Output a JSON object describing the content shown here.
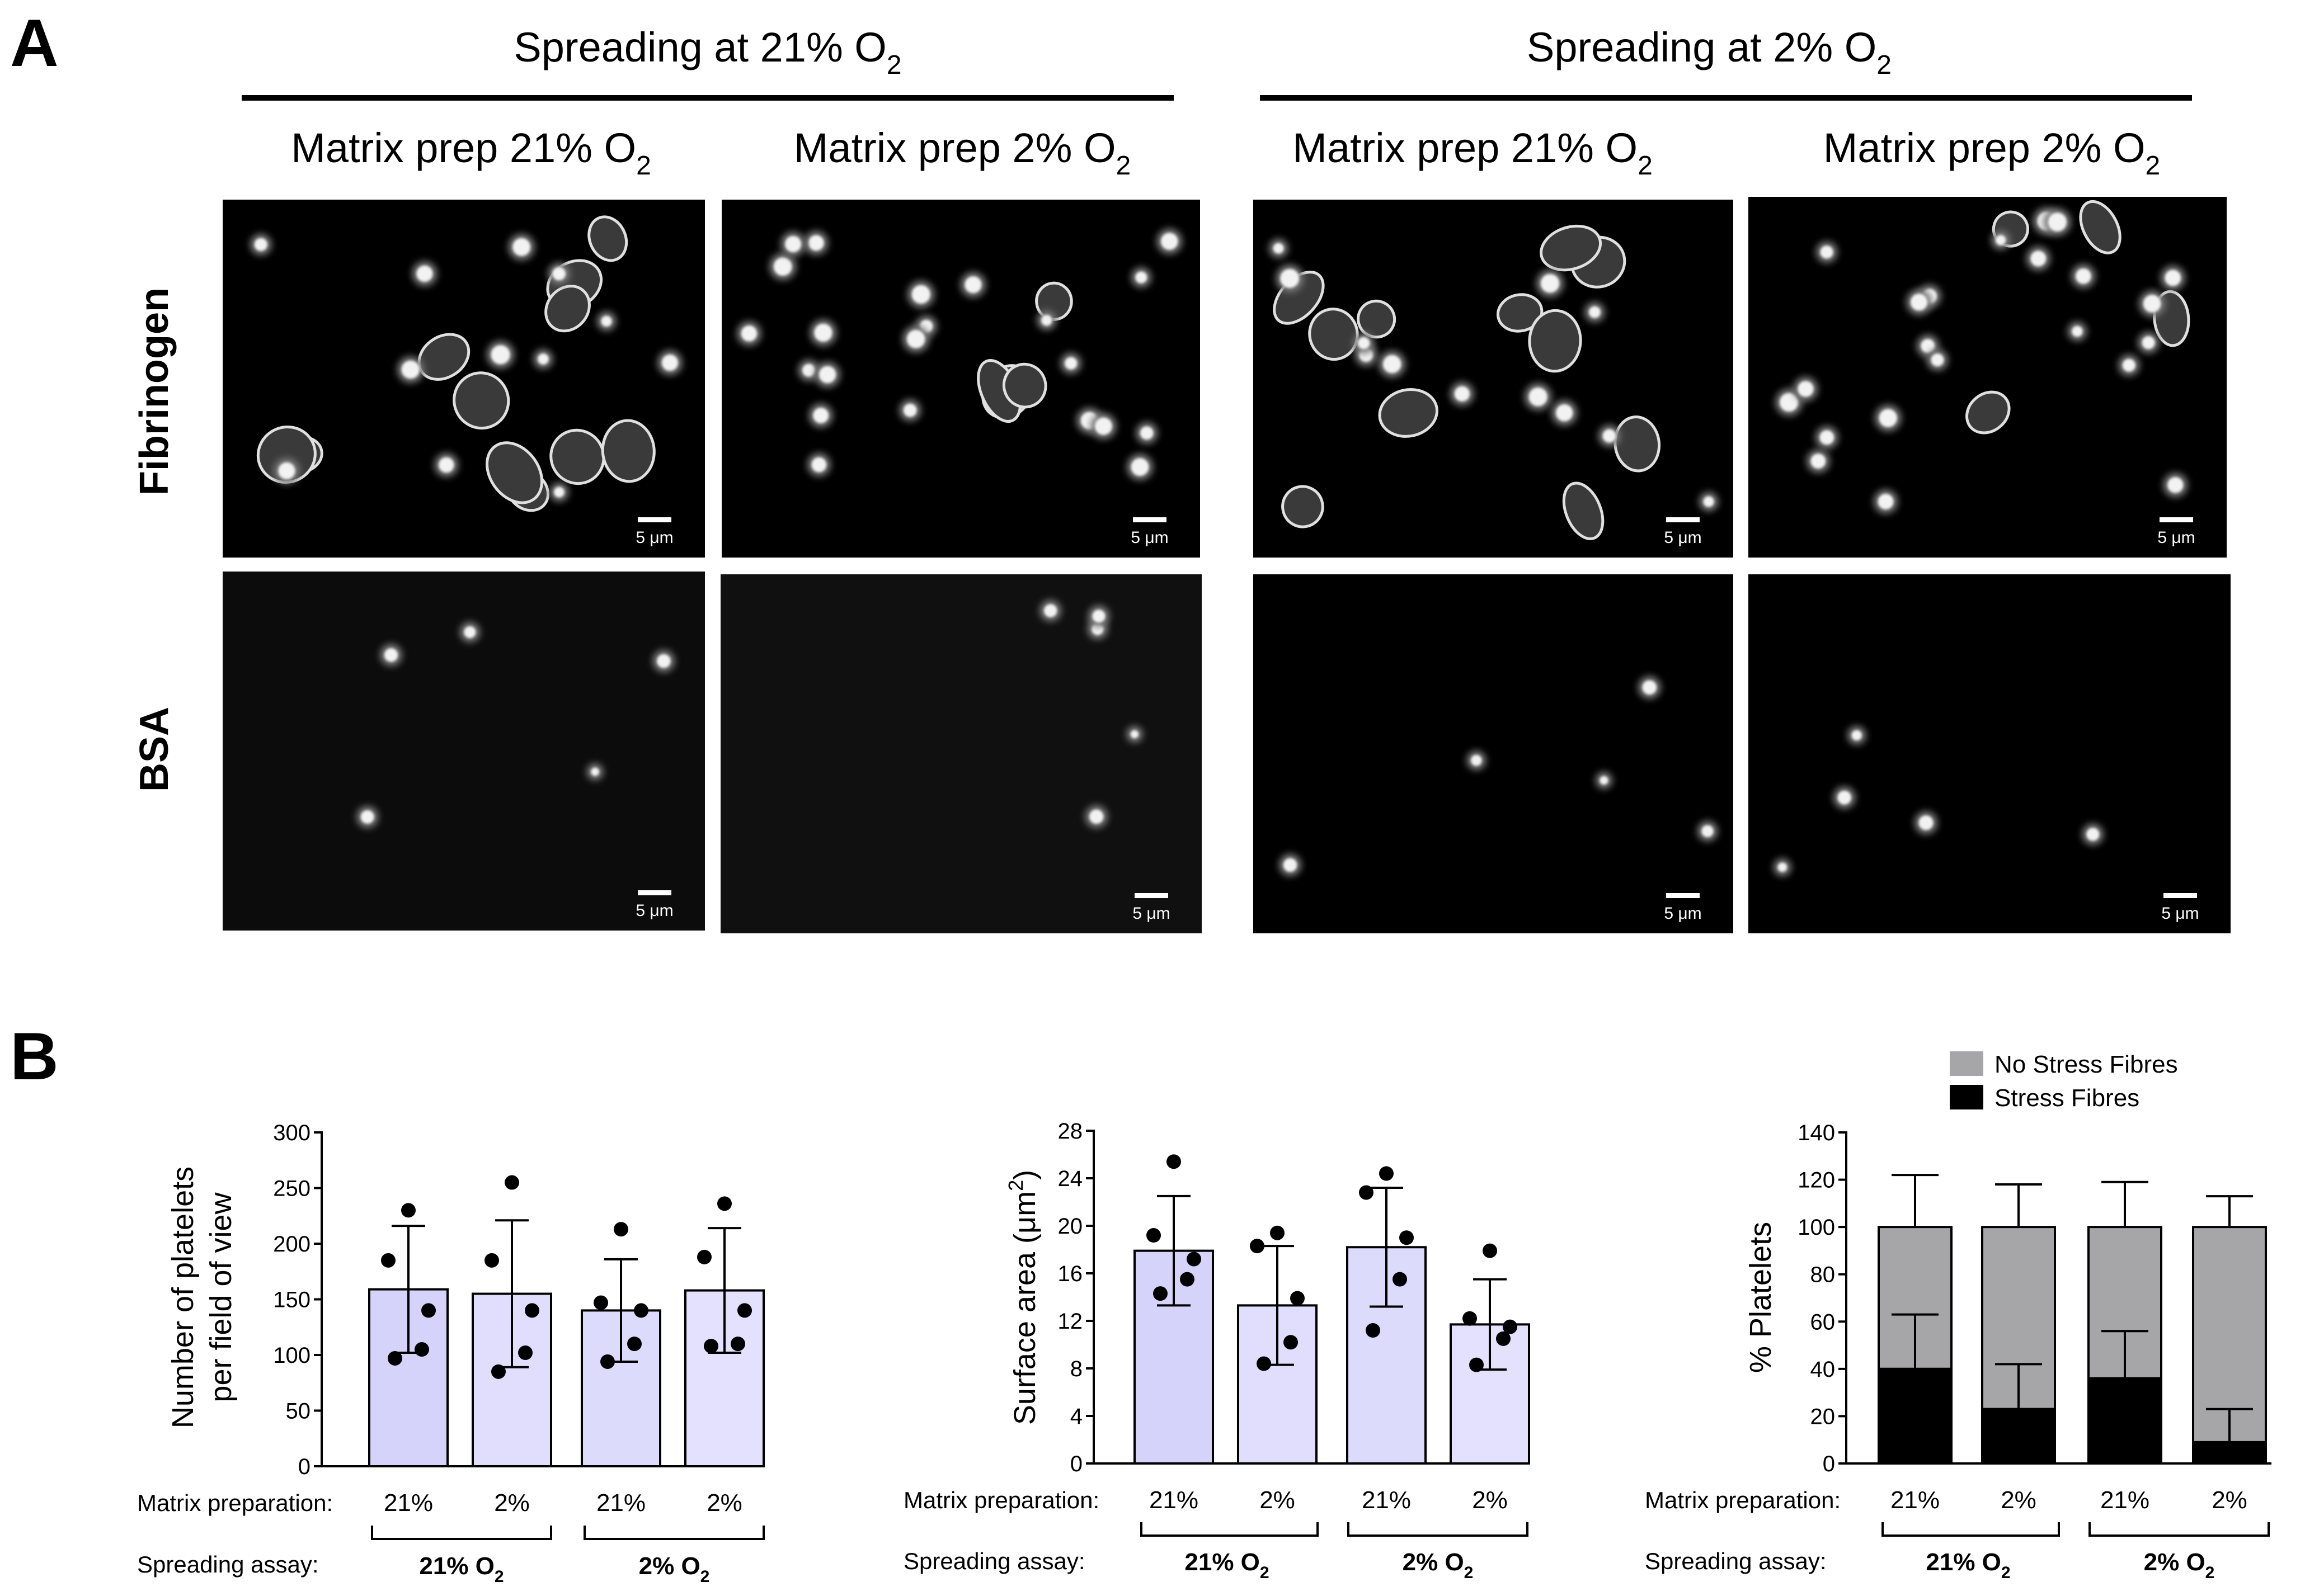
{
  "panelA": {
    "letter": "A",
    "groups": [
      {
        "label": "Spreading at 21% O",
        "sub": "2"
      },
      {
        "label": "Spreading at 2% O",
        "sub": "2"
      }
    ],
    "columns": [
      {
        "label": "Matrix prep 21% O",
        "sub": "2"
      },
      {
        "label": "Matrix prep 2% O",
        "sub": "2"
      },
      {
        "label": "Matrix prep 21% O",
        "sub": "2"
      },
      {
        "label": "Matrix prep 2% O",
        "sub": "2"
      }
    ],
    "rows": [
      "Fibrinogen",
      "BSA"
    ],
    "scale_bar": "5 μm"
  },
  "panelB": {
    "letter": "B",
    "row_titles": {
      "matrix": "Matrix preparation:",
      "spreading": "Spreading assay:"
    },
    "categories": [
      "21%",
      "2%",
      "21%",
      "2%"
    ],
    "spread_groups": [
      {
        "label": "21% O",
        "sub": "2"
      },
      {
        "label": "2% O",
        "sub": "2"
      }
    ]
  },
  "chart_data": [
    {
      "type": "bar",
      "ylabel_lines": [
        "Number of platelets",
        "per field of view"
      ],
      "ylim": [
        0,
        300
      ],
      "yticks": [
        0,
        50,
        100,
        150,
        200,
        250,
        300
      ],
      "categories": [
        "21%",
        "2%",
        "21%",
        "2%"
      ],
      "values": [
        159,
        155,
        140,
        158
      ],
      "sd": [
        57,
        66,
        46,
        56
      ],
      "points": [
        [
          230,
          185,
          140,
          105,
          97
        ],
        [
          255,
          185,
          140,
          102,
          85
        ],
        [
          213,
          147,
          140,
          110,
          94
        ],
        [
          236,
          188,
          140,
          110,
          108
        ]
      ],
      "bar_colors": [
        "#d6d3fb",
        "#e0defc",
        "#dddbfc",
        "#e3e1fd"
      ]
    },
    {
      "type": "bar",
      "ylabel": "Surface area (μm",
      "ylabel_sup": "2",
      "ylabel_end": ")",
      "ylim": [
        0,
        28
      ],
      "yticks": [
        0,
        4,
        8,
        12,
        16,
        20,
        24,
        28
      ],
      "categories": [
        "21%",
        "2%",
        "21%",
        "2%"
      ],
      "values": [
        17.9,
        13.3,
        18.2,
        11.7
      ],
      "sd": [
        4.6,
        5.0,
        5.0,
        3.8
      ],
      "points": [
        [
          25.4,
          19.2,
          17.2,
          15.5,
          14.3
        ],
        [
          19.4,
          18.3,
          13.9,
          10.2,
          8.4
        ],
        [
          24.4,
          22.8,
          19.0,
          15.5,
          11.2
        ],
        [
          17.9,
          12.2,
          11.5,
          10.5,
          8.3
        ]
      ],
      "bar_colors": [
        "#d6d3fb",
        "#e0defc",
        "#dddbfc",
        "#e3e1fd"
      ]
    },
    {
      "type": "stacked_bar",
      "ylabel": "% Platelets",
      "ylim": [
        0,
        140
      ],
      "yticks": [
        0,
        20,
        40,
        60,
        80,
        100,
        120,
        140
      ],
      "categories": [
        "21%",
        "2%",
        "21%",
        "2%"
      ],
      "series": [
        {
          "name": "Stress Fibres",
          "values": [
            40,
            23,
            36,
            9
          ],
          "sd": [
            23,
            19,
            20,
            14
          ],
          "color": "#000000"
        },
        {
          "name": "No Stress Fibres",
          "values": [
            60,
            77,
            64,
            91
          ],
          "sd": [
            22,
            18,
            19,
            13
          ],
          "color": "#a6a6a8"
        }
      ],
      "legend": [
        "No Stress Fibres",
        "Stress Fibres"
      ]
    }
  ]
}
